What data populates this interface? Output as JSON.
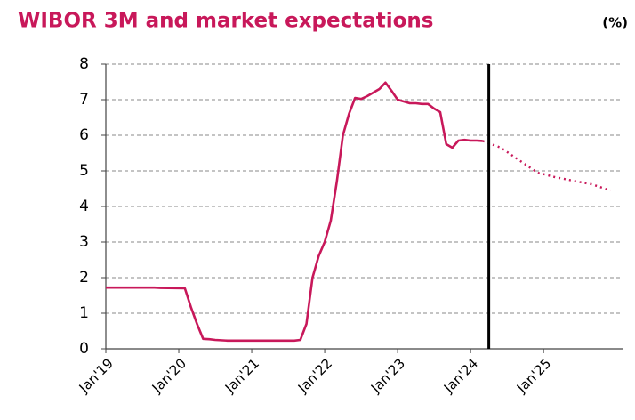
{
  "chart_data": {
    "type": "line",
    "title": "WIBOR 3M and market expectations",
    "unit_label": "(%)",
    "xlim": [
      "2019-01",
      "2026-02"
    ],
    "xticks": [
      {
        "value": "2019-01",
        "label": "Jan'19"
      },
      {
        "value": "2020-01",
        "label": "Jan'20"
      },
      {
        "value": "2021-01",
        "label": "Jan'21"
      },
      {
        "value": "2022-01",
        "label": "Jan'22"
      },
      {
        "value": "2023-01",
        "label": "Jan'23"
      },
      {
        "value": "2024-01",
        "label": "Jan'24"
      },
      {
        "value": "2025-01",
        "label": "Jan'25"
      }
    ],
    "ylim": [
      0,
      8
    ],
    "yticks": [
      0,
      1,
      2,
      3,
      4,
      5,
      6,
      7,
      8
    ],
    "grid": true,
    "vline_x": "2024-04",
    "series": [
      {
        "color": "#c8185a",
        "style": "solid",
        "x": [
          "2019-01",
          "2019-09",
          "2019-10",
          "2020-02",
          "2020-03",
          "2020-04",
          "2020-05",
          "2020-06",
          "2020-07",
          "2020-09",
          "2021-08",
          "2021-09",
          "2021-10",
          "2021-11",
          "2021-12",
          "2022-01",
          "2022-02",
          "2022-03",
          "2022-04",
          "2022-05",
          "2022-06",
          "2022-07",
          "2022-08",
          "2022-09",
          "2022-10",
          "2022-11",
          "2022-12",
          "2023-01",
          "2023-02",
          "2023-03",
          "2023-04",
          "2023-05",
          "2023-06",
          "2023-07",
          "2023-08",
          "2023-09",
          "2023-10",
          "2023-11",
          "2023-12",
          "2024-01",
          "2024-02",
          "2024-03"
        ],
        "values": [
          1.72,
          1.72,
          1.71,
          1.7,
          1.17,
          0.7,
          0.28,
          0.27,
          0.25,
          0.23,
          0.23,
          0.25,
          0.7,
          2.0,
          2.6,
          3.0,
          3.6,
          4.7,
          6.0,
          6.6,
          7.05,
          7.02,
          7.1,
          7.2,
          7.3,
          7.48,
          7.25,
          7.0,
          6.95,
          6.9,
          6.9,
          6.88,
          6.88,
          6.75,
          6.65,
          5.75,
          5.65,
          5.85,
          5.87,
          5.85,
          5.85,
          5.84
        ]
      },
      {
        "color": "#c8185a",
        "style": "dotted",
        "x": [
          "2024-03",
          "2024-06",
          "2024-09",
          "2024-12",
          "2025-03",
          "2025-06",
          "2025-09",
          "2025-12"
        ],
        "values": [
          5.84,
          5.65,
          5.3,
          4.95,
          4.82,
          4.72,
          4.62,
          4.45
        ]
      }
    ]
  }
}
